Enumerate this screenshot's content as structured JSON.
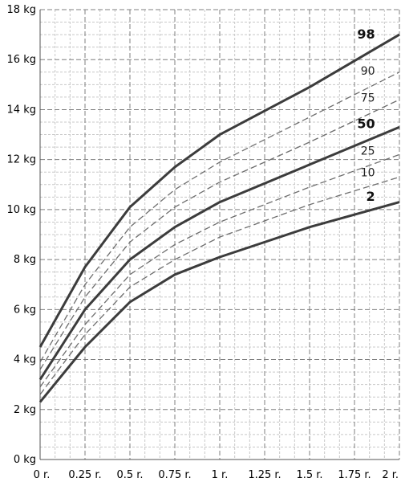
{
  "chart_data": {
    "type": "line",
    "title": "",
    "xlabel": "",
    "ylabel": "",
    "x_ticks": [
      "0 r.",
      "0.25 r.",
      "0.5 r.",
      "0.75 r.",
      "1 r.",
      "1.25 r.",
      "1.5 r.",
      "1.75 r.",
      "2 r."
    ],
    "y_ticks": [
      "0 kg",
      "2 kg",
      "4 kg",
      "6 kg",
      "8 kg",
      "10 kg",
      "12 kg",
      "14 kg",
      "16 kg",
      "18 kg"
    ],
    "xlim": [
      0,
      2
    ],
    "ylim": [
      0,
      18
    ],
    "grid": true,
    "x": [
      0,
      0.25,
      0.5,
      0.75,
      1,
      1.5,
      2
    ],
    "series": [
      {
        "name": "98",
        "emphasis": true,
        "values": [
          4.5,
          7.7,
          10.1,
          11.7,
          13.0,
          14.9,
          17.0
        ]
      },
      {
        "name": "90",
        "emphasis": false,
        "values": [
          3.9,
          7.0,
          9.3,
          10.8,
          11.9,
          13.7,
          15.5
        ]
      },
      {
        "name": "75",
        "emphasis": false,
        "values": [
          3.6,
          6.5,
          8.7,
          10.1,
          11.1,
          12.7,
          14.4
        ]
      },
      {
        "name": "50",
        "emphasis": true,
        "values": [
          3.2,
          6.0,
          8.0,
          9.3,
          10.3,
          11.8,
          13.3
        ]
      },
      {
        "name": "25",
        "emphasis": false,
        "values": [
          2.9,
          5.4,
          7.4,
          8.6,
          9.5,
          10.9,
          12.2
        ]
      },
      {
        "name": "10",
        "emphasis": false,
        "values": [
          2.6,
          5.0,
          6.9,
          8.0,
          8.9,
          10.2,
          11.3
        ]
      },
      {
        "name": "2",
        "emphasis": true,
        "values": [
          2.3,
          4.5,
          6.3,
          7.4,
          8.1,
          9.3,
          10.3
        ]
      }
    ],
    "colors": {
      "major_grid": "#7f7f7f",
      "minor_grid": "#c8c8c8",
      "bold_line": "#3c3c3c",
      "dashed_line": "#6e6e6e"
    }
  }
}
